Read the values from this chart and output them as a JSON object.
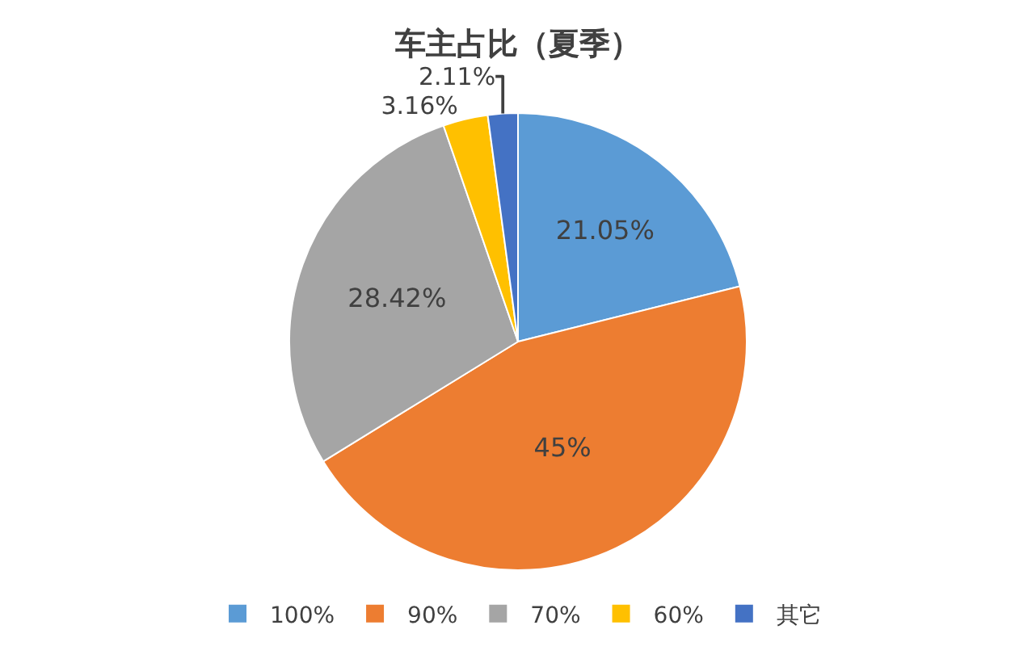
{
  "chart_data": {
    "type": "pie",
    "title": "车主占比（夏季）",
    "categories": [
      "100%",
      "90%",
      "70%",
      "60%",
      "其它"
    ],
    "values": [
      21.05,
      45,
      28.42,
      3.16,
      2.11
    ],
    "colors": [
      "#5b9bd5",
      "#ed7d31",
      "#a5a5a5",
      "#ffc000",
      "#4472c4"
    ],
    "value_labels": [
      "21.05%",
      "45%",
      "28.42%",
      "3.16%",
      "2.11%"
    ],
    "legend": "bottom"
  }
}
